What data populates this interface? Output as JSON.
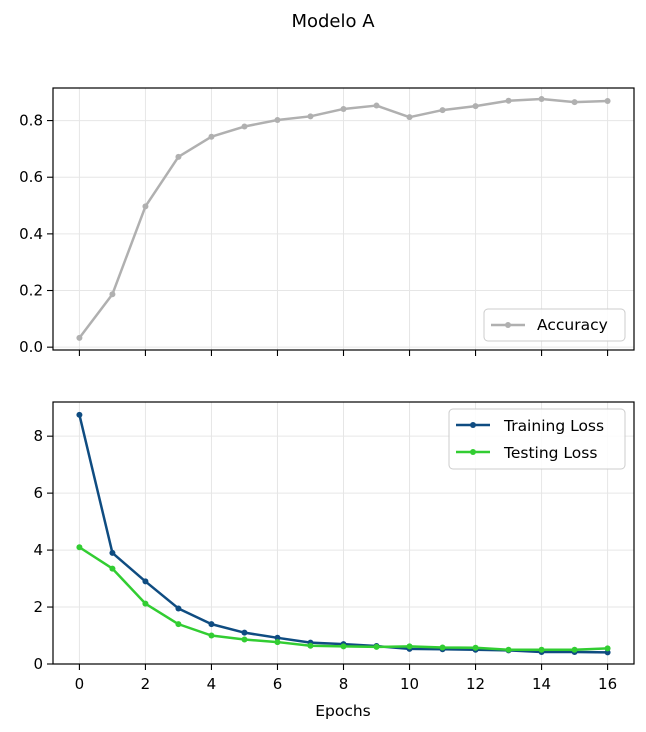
{
  "figure": {
    "title": "Modelo A"
  },
  "chart_data": [
    {
      "type": "line",
      "name": "accuracy-panel",
      "title": "",
      "xlabel": "",
      "ylabel": "",
      "xlim": [
        -0.8,
        16.8
      ],
      "ylim": [
        -0.01,
        0.915
      ],
      "x_ticks": [
        0,
        2,
        4,
        6,
        8,
        10,
        12,
        14,
        16
      ],
      "y_ticks": [
        0.0,
        0.2,
        0.4,
        0.6,
        0.8
      ],
      "y_tick_labels": [
        "0.0",
        "0.2",
        "0.4",
        "0.6",
        "0.8"
      ],
      "grid": true,
      "legend_position": "lower-right",
      "series": [
        {
          "name": "Accuracy",
          "color": "#b0b0b0",
          "x": [
            0,
            1,
            2,
            3,
            4,
            5,
            6,
            7,
            8,
            9,
            10,
            11,
            12,
            13,
            14,
            15,
            16
          ],
          "values": [
            0.033,
            0.187,
            0.497,
            0.672,
            0.743,
            0.779,
            0.802,
            0.815,
            0.841,
            0.853,
            0.812,
            0.837,
            0.851,
            0.87,
            0.876,
            0.865,
            0.869
          ]
        }
      ]
    },
    {
      "type": "line",
      "name": "loss-panel",
      "title": "",
      "xlabel": "Epochs",
      "ylabel": "",
      "xlim": [
        -0.8,
        16.8
      ],
      "ylim": [
        0.0,
        9.2
      ],
      "x_ticks": [
        0,
        2,
        4,
        6,
        8,
        10,
        12,
        14,
        16
      ],
      "x_tick_labels": [
        "0",
        "2",
        "4",
        "6",
        "8",
        "10",
        "12",
        "14",
        "16"
      ],
      "y_ticks": [
        0,
        2,
        4,
        6,
        8
      ],
      "y_tick_labels": [
        "0",
        "2",
        "4",
        "6",
        "8"
      ],
      "grid": true,
      "legend_position": "upper-right",
      "series": [
        {
          "name": "Training Loss",
          "color": "#0f4c81",
          "x": [
            0,
            1,
            2,
            3,
            4,
            5,
            6,
            7,
            8,
            9,
            10,
            11,
            12,
            13,
            14,
            15,
            16
          ],
          "values": [
            8.75,
            3.9,
            2.9,
            1.95,
            1.4,
            1.1,
            0.92,
            0.75,
            0.7,
            0.63,
            0.53,
            0.52,
            0.5,
            0.48,
            0.42,
            0.42,
            0.41
          ]
        },
        {
          "name": "Testing Loss",
          "color": "#32cd32",
          "x": [
            0,
            1,
            2,
            3,
            4,
            5,
            6,
            7,
            8,
            9,
            10,
            11,
            12,
            13,
            14,
            15,
            16
          ],
          "values": [
            4.1,
            3.35,
            2.12,
            1.4,
            1.0,
            0.86,
            0.77,
            0.64,
            0.62,
            0.6,
            0.62,
            0.58,
            0.57,
            0.5,
            0.5,
            0.5,
            0.55
          ]
        }
      ]
    }
  ]
}
